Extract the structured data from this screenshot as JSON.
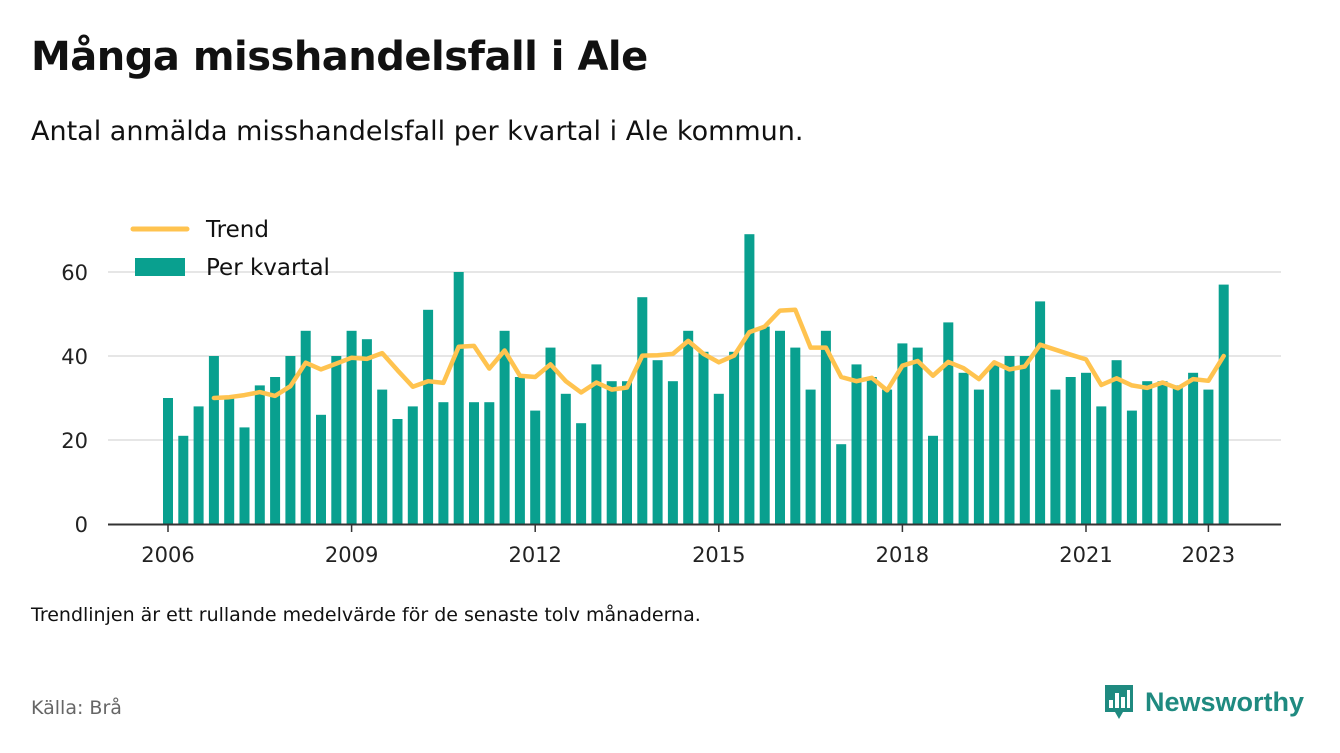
{
  "title": "Många misshandelsfall i Ale",
  "subtitle": "Antal anmälda misshandelsfall per kvartal i Ale kommun.",
  "note": "Trendlinjen är ett rullande medelvärde för de senaste tolv månaderna.",
  "source": "Källa: Brå",
  "brand": "Newsworthy",
  "colors": {
    "bar": "#09a08f",
    "trend": "#ffc34f",
    "grid": "#dddddd",
    "axis": "#333333",
    "brand": "#1f8a80"
  },
  "chart_data": {
    "type": "bar",
    "legend_position": "top-left",
    "ylim": [
      0,
      70
    ],
    "yticks": [
      0,
      20,
      40,
      60
    ],
    "grid": true,
    "x_tick_labels": [
      "2006",
      "2009",
      "2012",
      "2015",
      "2018",
      "2021",
      "2023"
    ],
    "x_tick_quarters": [
      0,
      12,
      24,
      36,
      48,
      60,
      68
    ],
    "series": [
      {
        "name": "Per kvartal",
        "type": "bar",
        "values": [
          30,
          21,
          28,
          40,
          30,
          23,
          33,
          35,
          40,
          46,
          26,
          40,
          46,
          44,
          32,
          25,
          28,
          51,
          29,
          60,
          29,
          29,
          46,
          35,
          27,
          42,
          31,
          24,
          38,
          34,
          34,
          54,
          39,
          34,
          46,
          41,
          31,
          41,
          69,
          47,
          46,
          42,
          32,
          46,
          19,
          38,
          35,
          32,
          43,
          42,
          21,
          48,
          36,
          32,
          38,
          40,
          40,
          53,
          32,
          35,
          36,
          28,
          39,
          27,
          34,
          34,
          33,
          36,
          32,
          57
        ]
      },
      {
        "name": "Trend",
        "type": "line",
        "start_index": 3,
        "values": [
          30,
          30.2,
          30.7,
          31.4,
          30.5,
          32.8,
          38.4,
          36.8,
          38.2,
          39.6,
          39.3,
          40.7,
          36.6,
          32.7,
          34,
          33.6,
          42.2,
          42.4,
          37,
          41.3,
          35.3,
          35,
          38,
          34,
          31.3,
          33.7,
          32,
          32.5,
          40.1,
          40.2,
          40.5,
          43.6,
          40.5,
          38.5,
          40.1,
          45.7,
          47,
          50.8,
          51,
          42,
          42,
          35,
          34,
          34.8,
          31.8,
          37.7,
          38.8,
          35.3,
          38.6,
          37.1,
          34.5,
          38.5,
          36.8,
          37.5,
          42.7,
          41.5,
          40.3,
          39.2,
          33.1,
          34.7,
          33,
          32.4,
          33.7,
          32.3,
          34.5,
          34.1,
          40
        ]
      }
    ]
  }
}
